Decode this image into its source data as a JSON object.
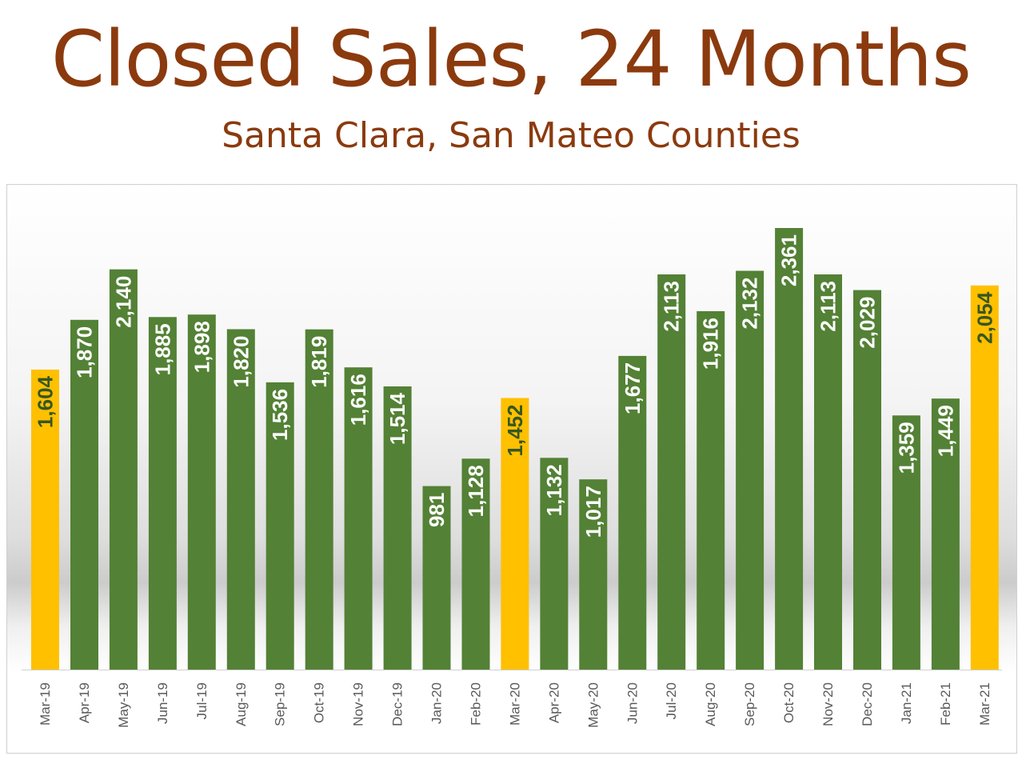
{
  "title": "Closed Sales, 24 Months",
  "subtitle": "Santa Clara, San Mateo Counties",
  "colors": {
    "title": "#8b3a0e",
    "bar_default": "#538135",
    "bar_highlight": "#ffc000",
    "label_on_green": "#ffffff",
    "label_on_gold": "#375623"
  },
  "chart_data": {
    "type": "bar",
    "title": "Closed Sales, 24 Months",
    "subtitle": "Santa Clara, San Mateo Counties",
    "categories": [
      "Mar-19",
      "Apr-19",
      "May-19",
      "Jun-19",
      "Jul-19",
      "Aug-19",
      "Sep-19",
      "Oct-19",
      "Nov-19",
      "Dec-19",
      "Jan-20",
      "Feb-20",
      "Mar-20",
      "Apr-20",
      "May-20",
      "Jun-20",
      "Jul-20",
      "Aug-20",
      "Sep-20",
      "Oct-20",
      "Nov-20",
      "Dec-20",
      "Jan-21",
      "Feb-21",
      "Mar-21"
    ],
    "values": [
      1604,
      1870,
      2140,
      1885,
      1898,
      1820,
      1536,
      1819,
      1616,
      1514,
      981,
      1128,
      1452,
      1132,
      1017,
      1677,
      2113,
      1916,
      2132,
      2361,
      2113,
      2029,
      1359,
      1449,
      2054
    ],
    "data_labels": [
      "1,604",
      "1,870",
      "2,140",
      "1,885",
      "1,898",
      "1,820",
      "1,536",
      "1,819",
      "1,616",
      "1,514",
      "981",
      "1,128",
      "1,452",
      "1,132",
      "1,017",
      "1,677",
      "2,113",
      "1,916",
      "2,132",
      "2,361",
      "2,113",
      "2,029",
      "1,359",
      "1,449",
      "2,054"
    ],
    "highlighted_categories": [
      "Mar-19",
      "Mar-20",
      "Mar-21"
    ],
    "xlabel": "",
    "ylabel": "",
    "ylim": [
      0,
      2361
    ],
    "y_axis_visible": false,
    "grid": false,
    "legend": "none"
  }
}
